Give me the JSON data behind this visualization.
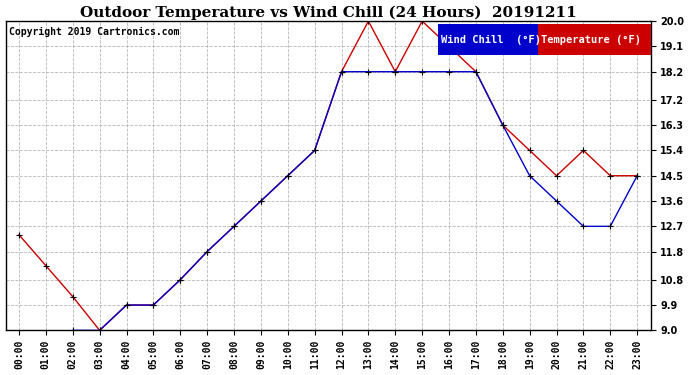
{
  "title": "Outdoor Temperature vs Wind Chill (24 Hours)  20191211",
  "copyright": "Copyright 2019 Cartronics.com",
  "background_color": "#ffffff",
  "plot_bg_color": "#ffffff",
  "grid_color": "#b0b0b0",
  "x_labels": [
    "00:00",
    "01:00",
    "02:00",
    "03:00",
    "04:00",
    "05:00",
    "06:00",
    "07:00",
    "08:00",
    "09:00",
    "10:00",
    "11:00",
    "12:00",
    "13:00",
    "14:00",
    "15:00",
    "16:00",
    "17:00",
    "18:00",
    "19:00",
    "20:00",
    "21:00",
    "22:00",
    "23:00"
  ],
  "temperature": [
    12.4,
    11.3,
    10.2,
    9.0,
    9.9,
    9.9,
    10.8,
    11.8,
    12.7,
    13.6,
    14.5,
    15.4,
    18.2,
    20.0,
    18.2,
    20.0,
    19.1,
    18.2,
    16.3,
    15.4,
    14.5,
    15.4,
    14.5,
    14.5
  ],
  "wind_chill": [
    null,
    null,
    9.0,
    9.0,
    9.9,
    9.9,
    10.8,
    11.8,
    12.7,
    13.6,
    14.5,
    15.4,
    18.2,
    18.2,
    18.2,
    18.2,
    18.2,
    18.2,
    16.3,
    14.5,
    13.6,
    12.7,
    12.7,
    14.5
  ],
  "ylim": [
    9.0,
    20.0
  ],
  "y_ticks": [
    9.0,
    9.9,
    10.8,
    11.8,
    12.7,
    13.6,
    14.5,
    15.4,
    16.3,
    17.2,
    18.2,
    19.1,
    20.0
  ],
  "temp_color": "#cc0000",
  "wind_color": "#0000cc",
  "marker_color": "#000000",
  "legend_wind_bg": "#0000cc",
  "legend_temp_bg": "#cc0000",
  "legend_text_color": "#ffffff",
  "title_fontsize": 11,
  "copyright_fontsize": 7,
  "tick_fontsize": 7,
  "legend_fontsize": 7.5
}
